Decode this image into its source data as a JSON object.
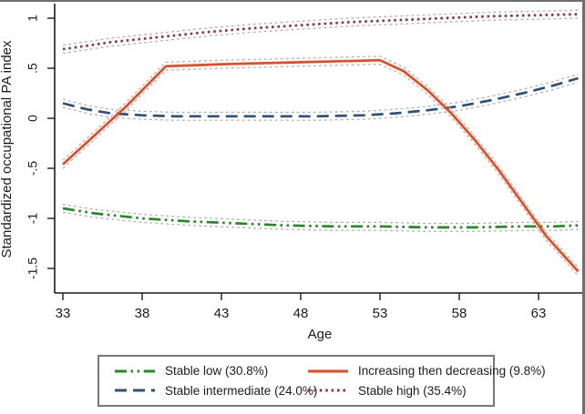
{
  "chart_data": {
    "type": "line",
    "title": "",
    "xlabel": "Age",
    "ylabel": "Standardized occupational PA index",
    "x_ticks": [
      33,
      38,
      43,
      48,
      53,
      58,
      63
    ],
    "y_ticks": [
      {
        "v": 1,
        "label": "1"
      },
      {
        "v": 0.5,
        "label": ".5"
      },
      {
        "v": 0,
        "label": "0"
      },
      {
        "v": -0.5,
        "label": "-.5"
      },
      {
        "v": -1,
        "label": "-1"
      },
      {
        "v": -1.5,
        "label": "-1.5"
      }
    ],
    "xlim": [
      32.5,
      66
    ],
    "ylim": [
      -1.75,
      1.15
    ],
    "grid": false,
    "legend_position": "bottom",
    "axis_color": "#1c1c1c",
    "ci_color": "#aeaeae",
    "ci_halfwidth": 0.04,
    "series": [
      {
        "name": "stable-low",
        "label": "Stable low (30.8%)",
        "color": "#228B22",
        "style": "dash-dot-dot",
        "x": [
          33,
          35,
          38,
          41,
          44,
          47,
          50,
          53,
          56,
          59,
          62,
          64,
          65.5
        ],
        "y": [
          -0.9,
          -0.95,
          -1.0,
          -1.03,
          -1.05,
          -1.07,
          -1.08,
          -1.08,
          -1.09,
          -1.09,
          -1.08,
          -1.08,
          -1.07
        ]
      },
      {
        "name": "stable-intermediate",
        "label": "Stable intermediate (24.0%)",
        "color": "#2a527e",
        "style": "long-dash",
        "x": [
          33,
          34.5,
          36,
          38,
          40,
          43,
          46,
          49,
          52,
          54,
          56,
          58,
          60,
          62,
          64,
          65.5
        ],
        "y": [
          0.15,
          0.09,
          0.05,
          0.03,
          0.02,
          0.02,
          0.02,
          0.02,
          0.03,
          0.05,
          0.08,
          0.12,
          0.18,
          0.25,
          0.33,
          0.4
        ]
      },
      {
        "name": "increasing-then-decreasing",
        "label": "Increasing then decreasing (9.8%)",
        "color": "#ea491d",
        "style": "solid",
        "x": [
          33,
          35,
          37,
          39.5,
          43,
          48,
          53,
          54.5,
          56,
          57.5,
          59,
          60.5,
          62,
          63.5,
          65.5
        ],
        "y": [
          -0.46,
          -0.17,
          0.12,
          0.52,
          0.54,
          0.56,
          0.58,
          0.47,
          0.28,
          0.05,
          -0.22,
          -0.52,
          -0.85,
          -1.18,
          -1.53
        ]
      },
      {
        "name": "stable-high",
        "label": "Stable high (35.4%)",
        "color": "#90353b",
        "style": "dot",
        "x": [
          33,
          36,
          39,
          42,
          45,
          48,
          51,
          54,
          57,
          60,
          63,
          65.5
        ],
        "y": [
          0.69,
          0.76,
          0.81,
          0.86,
          0.9,
          0.93,
          0.96,
          0.98,
          1.0,
          1.02,
          1.03,
          1.04
        ]
      }
    ]
  }
}
